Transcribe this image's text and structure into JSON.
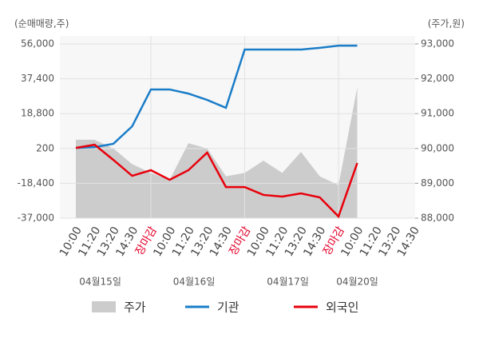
{
  "chart_data": {
    "type": "line",
    "y_axis_title": "(순매매량,주)",
    "y2_axis_title": "(주가,원)",
    "categories": [
      "10:00",
      "11:20",
      "13:20",
      "14:30",
      "장마감",
      "10:00",
      "11:20",
      "13:20",
      "14:30",
      "장마감",
      "10:00",
      "11:20",
      "13:20",
      "14:30",
      "장마감",
      "10:00",
      "11:20",
      "13:20",
      "14:30"
    ],
    "date_labels": [
      "04월15일",
      "04월16일",
      "04월17일",
      "04월20일"
    ],
    "day_end_label_color": "#e4002b",
    "grid": true,
    "ylim": [
      -37000,
      56000
    ],
    "yticks": [
      {
        "value": -37000,
        "label": "-37,000"
      },
      {
        "value": -18400,
        "label": "-18,400"
      },
      200,
      {
        "value": 18800,
        "label": "18,800"
      },
      {
        "value": 37400,
        "label": "37,400"
      },
      {
        "value": 56000,
        "label": "56,000"
      }
    ],
    "y2lim": [
      88000,
      93000
    ],
    "y2ticks": [
      {
        "value": 88000,
        "label": "88,000"
      },
      {
        "value": 89000,
        "label": "89,000"
      },
      {
        "value": 90000,
        "label": "90,000"
      },
      {
        "value": 91000,
        "label": "91,000"
      },
      {
        "value": 92000,
        "label": "92,000"
      },
      {
        "value": 93000,
        "label": "93,000"
      }
    ],
    "series": [
      {
        "name": "주가",
        "type": "area",
        "axis": "y2",
        "color": "#cccccc",
        "values": [
          90250,
          90250,
          90000,
          89550,
          89300,
          89100,
          90150,
          90000,
          89200,
          89300,
          89650,
          89300,
          89900,
          89200,
          88950,
          91750,
          null,
          null,
          null
        ]
      },
      {
        "name": "기관",
        "type": "line",
        "color": "#1a7dc8",
        "values": [
          500,
          900,
          2700,
          12000,
          31700,
          31700,
          29500,
          26100,
          21900,
          53000,
          53000,
          53000,
          53000,
          53900,
          55100,
          55100,
          null,
          null,
          null
        ]
      },
      {
        "name": "외국인",
        "type": "line",
        "color": "#e8000b",
        "values": [
          500,
          2200,
          -5900,
          -14400,
          -11400,
          -16500,
          -11400,
          -2000,
          -20400,
          -20400,
          -24600,
          -25500,
          -23800,
          -25900,
          -36100,
          -7600,
          null,
          null,
          null
        ]
      }
    ]
  }
}
